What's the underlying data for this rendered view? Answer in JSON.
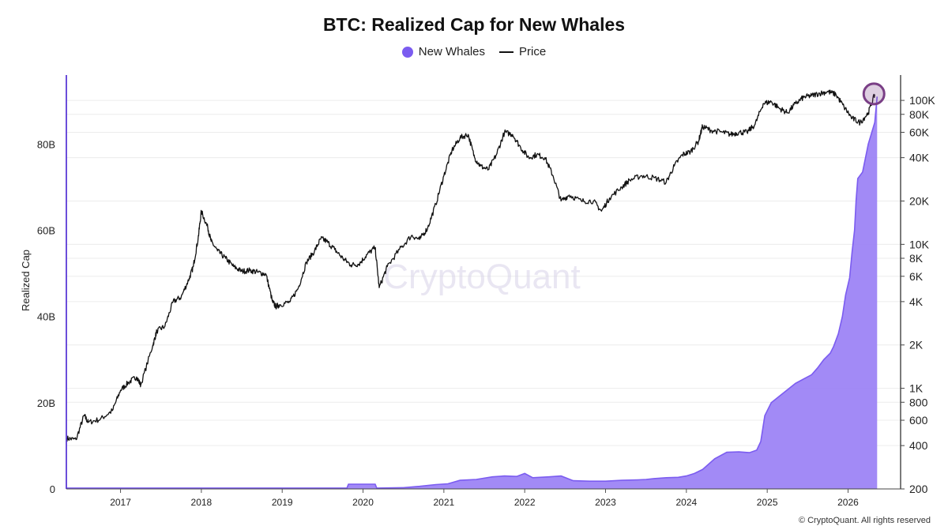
{
  "colors": {
    "whales": "#7b5cf0",
    "whales_fill": "#9a80f5",
    "price": "#111111",
    "highlight": "#7a3f86",
    "axis_left": "#5b3ad6"
  },
  "chart_data": {
    "type": "area",
    "title": "BTC: Realized Cap for New Whales",
    "watermark": "CryptoQuant",
    "credit": "© CryptoQuant. All rights reserved",
    "ylabel": "Realized Cap",
    "legend": [
      {
        "name": "New Whales",
        "marker": "dot"
      },
      {
        "name": "Price",
        "marker": "line"
      }
    ],
    "x_ticks": [
      "2017",
      "2018",
      "2019",
      "2020",
      "2021",
      "2022",
      "2023",
      "2024",
      "2025",
      "2026"
    ],
    "x_tick_values": [
      2017,
      2018,
      2019,
      2020,
      2021,
      2022,
      2023,
      2024,
      2025,
      2026
    ],
    "xlim": [
      2016.33,
      2026.65
    ],
    "left_axis": {
      "ticks": [
        "0",
        "20B",
        "40B",
        "60B",
        "80B"
      ],
      "tick_values": [
        0,
        20,
        40,
        60,
        80
      ],
      "ylim": [
        0,
        96
      ],
      "unit": "billion USD"
    },
    "right_axis": {
      "scale": "log",
      "ticks": [
        "200",
        "400",
        "600",
        "800",
        "1K",
        "2K",
        "4K",
        "6K",
        "8K",
        "10K",
        "20K",
        "40K",
        "60K",
        "80K",
        "100K"
      ],
      "tick_values": [
        200,
        400,
        600,
        800,
        1000,
        2000,
        4000,
        6000,
        8000,
        10000,
        20000,
        40000,
        60000,
        80000,
        100000
      ],
      "ylim": [
        200,
        150000
      ]
    },
    "series": [
      {
        "name": "New Whales",
        "axis": "left",
        "style": "area",
        "x": [
          2016.33,
          2019.8,
          2019.82,
          2020.15,
          2020.17,
          2020.5,
          2020.7,
          2020.9,
          2021.05,
          2021.2,
          2021.4,
          2021.6,
          2021.75,
          2021.9,
          2022.0,
          2022.1,
          2022.3,
          2022.45,
          2022.6,
          2022.8,
          2023.0,
          2023.2,
          2023.4,
          2023.5,
          2023.6,
          2023.75,
          2023.9,
          2024.0,
          2024.1,
          2024.2,
          2024.35,
          2024.5,
          2024.65,
          2024.78,
          2024.87,
          2024.92,
          2024.97,
          2025.05,
          2025.15,
          2025.25,
          2025.35,
          2025.45,
          2025.55,
          2025.62,
          2025.7,
          2025.78,
          2025.82,
          2025.88,
          2025.93,
          2025.97,
          2026.02,
          2026.05,
          2026.08,
          2026.1,
          2026.12,
          2026.18,
          2026.25,
          2026.33,
          2026.36
        ],
        "values": [
          0.2,
          0.2,
          1.1,
          1.1,
          0.2,
          0.3,
          0.6,
          1.0,
          1.2,
          2.0,
          2.2,
          2.8,
          3.0,
          2.9,
          3.6,
          2.6,
          2.8,
          3.0,
          1.9,
          1.8,
          1.8,
          2.0,
          2.1,
          2.2,
          2.4,
          2.6,
          2.7,
          3.0,
          3.6,
          4.5,
          7.0,
          8.5,
          8.6,
          8.4,
          9.0,
          11.0,
          17.0,
          20.0,
          21.5,
          23.0,
          24.5,
          25.5,
          26.5,
          28.0,
          30.0,
          31.5,
          33.0,
          36.0,
          40.0,
          45.0,
          49.0,
          55.0,
          60.0,
          67.0,
          72.0,
          73.5,
          80.0,
          85.0,
          91.0
        ]
      },
      {
        "name": "Price",
        "axis": "right",
        "style": "line",
        "unit": "USD",
        "x": [
          2016.33,
          2016.45,
          2016.55,
          2016.6,
          2016.75,
          2016.9,
          2017.0,
          2017.1,
          2017.2,
          2017.25,
          2017.4,
          2017.45,
          2017.55,
          2017.65,
          2017.75,
          2017.85,
          2017.9,
          2017.96,
          2018.0,
          2018.08,
          2018.12,
          2018.2,
          2018.3,
          2018.4,
          2018.5,
          2018.6,
          2018.7,
          2018.8,
          2018.88,
          2018.92,
          2018.97,
          2019.1,
          2019.2,
          2019.3,
          2019.4,
          2019.48,
          2019.55,
          2019.65,
          2019.75,
          2019.85,
          2019.95,
          2020.05,
          2020.15,
          2020.2,
          2020.3,
          2020.45,
          2020.6,
          2020.7,
          2020.8,
          2020.9,
          2021.0,
          2021.1,
          2021.2,
          2021.3,
          2021.38,
          2021.45,
          2021.55,
          2021.65,
          2021.75,
          2021.85,
          2021.95,
          2022.05,
          2022.15,
          2022.25,
          2022.35,
          2022.45,
          2022.55,
          2022.7,
          2022.85,
          2022.95,
          2023.05,
          2023.2,
          2023.3,
          2023.45,
          2023.6,
          2023.75,
          2023.85,
          2023.95,
          2024.05,
          2024.15,
          2024.2,
          2024.3,
          2024.45,
          2024.55,
          2024.65,
          2024.75,
          2024.85,
          2024.95,
          2025.05,
          2025.15,
          2025.25,
          2025.35,
          2025.45,
          2025.55,
          2025.65,
          2025.75,
          2025.85,
          2025.95,
          2026.05,
          2026.15,
          2026.25,
          2026.33
        ],
        "values": [
          450,
          440,
          650,
          580,
          610,
          700,
          970,
          1100,
          1200,
          1050,
          2000,
          2500,
          2700,
          4000,
          4300,
          5800,
          7000,
          11000,
          17000,
          13000,
          10500,
          9000,
          8000,
          7000,
          6500,
          6600,
          6400,
          6200,
          4000,
          3700,
          3800,
          4000,
          5000,
          7500,
          9000,
          11000,
          10500,
          9200,
          8000,
          7200,
          7300,
          8500,
          9500,
          5000,
          7000,
          9200,
          11500,
          10800,
          13000,
          19000,
          30000,
          45000,
          55000,
          58000,
          40000,
          35000,
          33000,
          42000,
          60000,
          58000,
          47000,
          40000,
          42000,
          40000,
          30000,
          20000,
          22000,
          20000,
          20000,
          17000,
          21000,
          25000,
          28000,
          30000,
          29000,
          27000,
          35000,
          42000,
          44000,
          52000,
          66000,
          62000,
          60000,
          58000,
          60000,
          60000,
          68000,
          95000,
          98000,
          88000,
          82000,
          95000,
          105000,
          108000,
          112000,
          115000,
          110000,
          90000,
          75000,
          70000,
          82000,
          110000
        ]
      }
    ],
    "annotations": [
      {
        "type": "circle-highlight",
        "x": 2026.33,
        "axis": "left",
        "y": 92
      }
    ]
  }
}
